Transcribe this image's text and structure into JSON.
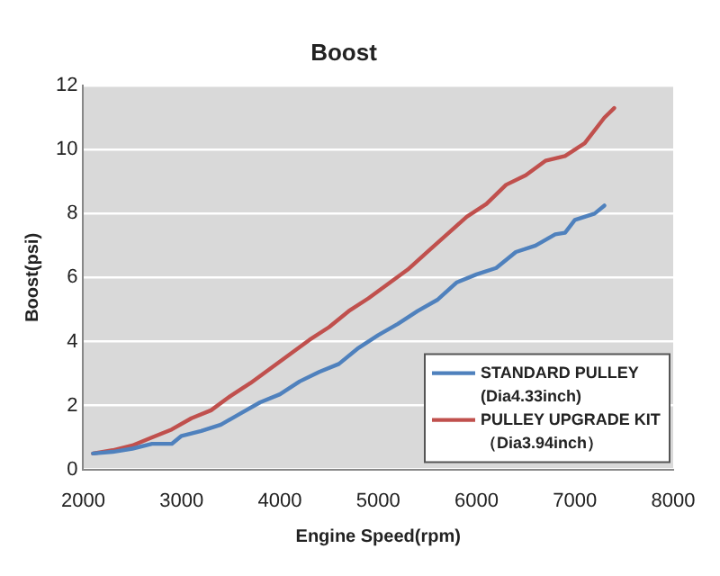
{
  "chart_data": {
    "type": "line",
    "title": "Boost",
    "xlabel": "Engine Speed(rpm)",
    "ylabel": "Boost(psi)",
    "xlim": [
      2000,
      8000
    ],
    "xticks": [
      2000,
      3000,
      4000,
      5000,
      6000,
      7000,
      8000
    ],
    "ylim": [
      0,
      12
    ],
    "yticks": [
      0,
      2,
      4,
      6,
      8,
      10,
      12
    ],
    "grid": "y",
    "legend": "bottom right",
    "marker": "none",
    "line_style": "solid",
    "series": [
      {
        "name": "STANDARD PULLEY\n(Dia4.33inch)",
        "color": "#4f81bd",
        "x": [
          2100,
          2300,
          2500,
          2700,
          2900,
          3000,
          3200,
          3400,
          3600,
          3800,
          4000,
          4200,
          4400,
          4600,
          4800,
          5000,
          5200,
          5400,
          5600,
          5800,
          6000,
          6200,
          6400,
          6600,
          6800,
          6900,
          7000,
          7200,
          7300
        ],
        "values": [
          0.5,
          0.55,
          0.65,
          0.8,
          0.8,
          1.05,
          1.2,
          1.4,
          1.75,
          2.1,
          2.35,
          2.75,
          3.05,
          3.3,
          3.8,
          4.2,
          4.55,
          4.95,
          5.3,
          5.85,
          6.1,
          6.3,
          6.8,
          7.0,
          7.35,
          7.4,
          7.8,
          8.0,
          8.25
        ]
      },
      {
        "name": "PULLEY UPGRADE KIT\n（Dia3.94inch）",
        "color": "#c0504d",
        "x": [
          2100,
          2300,
          2500,
          2700,
          2900,
          3100,
          3300,
          3500,
          3700,
          3900,
          4100,
          4300,
          4500,
          4700,
          4900,
          5100,
          5300,
          5500,
          5700,
          5900,
          6100,
          6300,
          6500,
          6700,
          6900,
          7100,
          7300,
          7400
        ],
        "values": [
          0.5,
          0.6,
          0.75,
          1.0,
          1.25,
          1.6,
          1.85,
          2.3,
          2.7,
          3.15,
          3.6,
          4.05,
          4.45,
          4.95,
          5.35,
          5.8,
          6.25,
          6.8,
          7.35,
          7.9,
          8.3,
          8.9,
          9.2,
          9.65,
          9.8,
          10.2,
          11.0,
          11.3
        ]
      }
    ]
  }
}
